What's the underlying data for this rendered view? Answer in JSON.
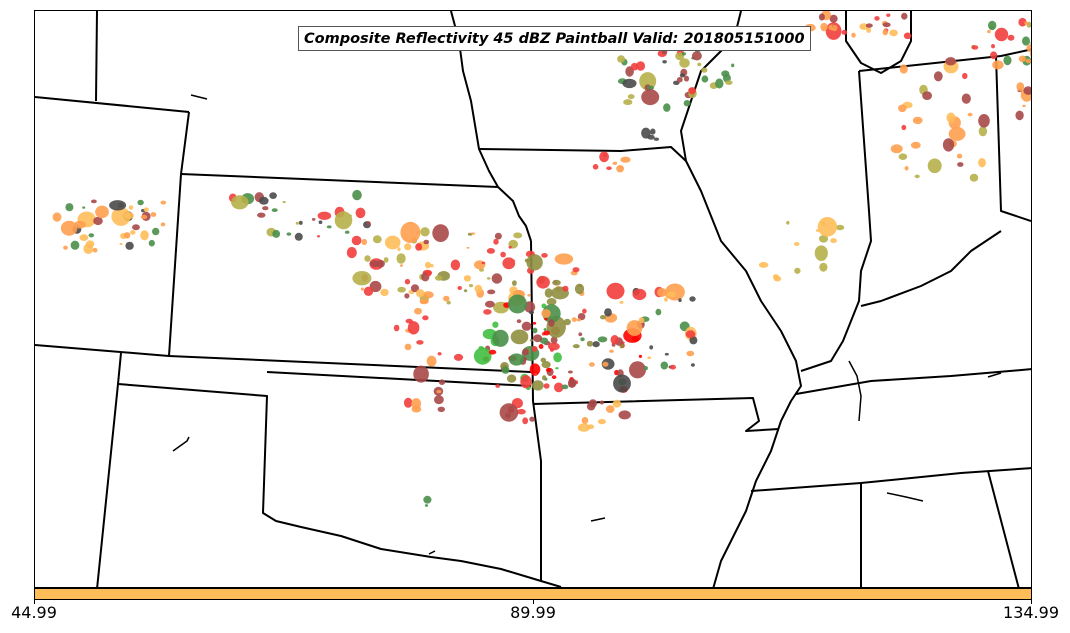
{
  "title": "Composite Reflectivity 45 dBZ Paintball Valid: 201805151000",
  "colorbar": {
    "color": "#ffbd5a",
    "ticks": [
      "44.99",
      "89.99",
      "134.99"
    ]
  },
  "palette": {
    "red": "#f23d3d",
    "orange": "#ff9e4f",
    "yellow_orange": "#ffbd5a",
    "olive": "#b7b04a",
    "dark_olive": "#8f8f40",
    "green": "#3fbf3f",
    "dark_green": "#4a8f4a",
    "maroon": "#a84848",
    "dark_gray": "#4a4a4a",
    "bright_red": "#ff0000"
  }
}
